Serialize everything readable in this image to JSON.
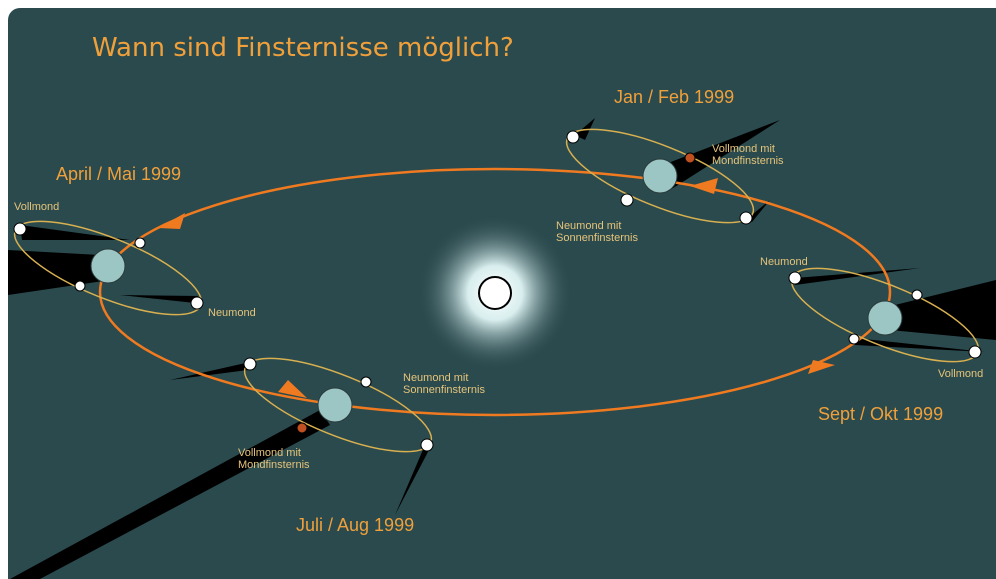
{
  "title": "Wann sind Finsternisse möglich?",
  "labels": [
    {
      "lines": [
        "Jan / Feb 1999"
      ]
    },
    {
      "lines": [
        "Vollmond mit",
        "Mondfinsternis"
      ]
    },
    {
      "lines": [
        "Neumond mit",
        "Sonnenfinsternis"
      ]
    },
    {
      "lines": [
        "April / Mai 1999"
      ]
    },
    {
      "lines": [
        "Vollmond"
      ]
    },
    {
      "lines": [
        "Neumond"
      ]
    },
    {
      "lines": [
        "Neumond"
      ]
    },
    {
      "lines": [
        "Vollmond"
      ]
    },
    {
      "lines": [
        "Sept / Okt 1999"
      ]
    },
    {
      "lines": [
        "Neumond mit",
        "Sonnenfinsternis"
      ]
    },
    {
      "lines": [
        "Vollmond mit",
        "Mondfinsternis"
      ]
    },
    {
      "lines": [
        "Juli / Aug 1999"
      ]
    }
  ]
}
